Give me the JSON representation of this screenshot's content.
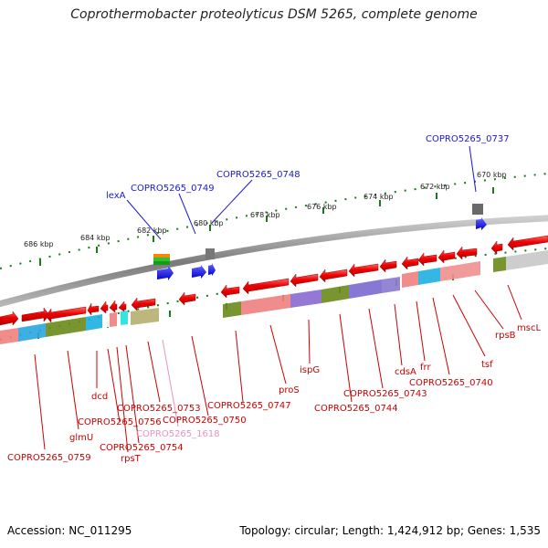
{
  "title": "Coprothermobacter proteolyticus DSM 5265, complete genome",
  "footer": {
    "accession": "Accession: NC_011295",
    "summary": "Topology: circular; Length: 1,424,912 bp; Genes: 1,535"
  },
  "scale_labels": [
    "686 kbp",
    "684 kbp",
    "682 kbp",
    "680 kbp",
    "678 kbp",
    "676 kbp",
    "674 kbp",
    "672 kbp",
    "670 kbp"
  ],
  "gene_labels_top": [
    "COPRO5265_0737",
    "COPRO5265_0748",
    "COPRO5265_0749",
    "lexA"
  ],
  "gene_labels_bottom": [
    "mscL",
    "rpsB",
    "tsf",
    "COPRO5265_0740",
    "frr",
    "cdsA",
    "COPRO5265_0743",
    "COPRO5265_0744",
    "ispG",
    "proS",
    "COPRO5265_0747",
    "COPRO5265_0750",
    "COPRO5265_1618",
    "COPRO5265_0753",
    "COPRO5265_0754",
    "rpsT",
    "COPRO5265_0756",
    "dcd",
    "glmU",
    "COPRO5265_0759"
  ],
  "colors": {
    "gene_red": "#e60000",
    "gene_blue": "#1a1aee",
    "label_red": "#cc0000",
    "label_blue": "#1a1acc",
    "label_pink": "#f090c0",
    "scale_green": "#1a7a1a",
    "backbone": "#8a8a8a"
  }
}
